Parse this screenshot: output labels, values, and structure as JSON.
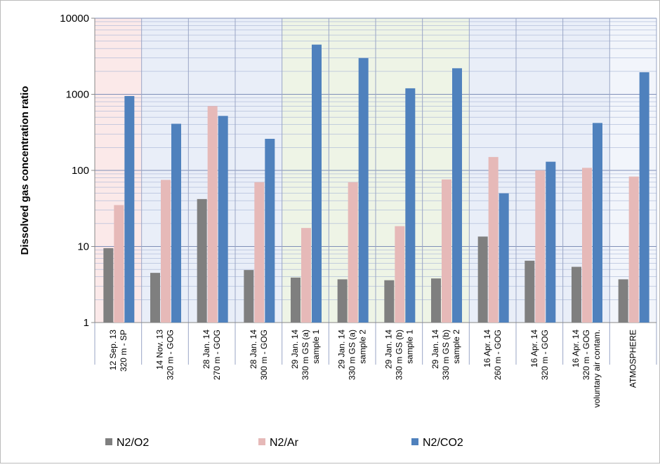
{
  "chart_data": {
    "type": "bar",
    "log_scale": true,
    "grid": true,
    "minor_grid": true,
    "y_label": "Dissolved gas concentration ratio",
    "categories": [
      [
        "12 Sep. 13",
        "320 m - SP"
      ],
      [
        "14 Nov. 13",
        "320 m - GOG"
      ],
      [
        "28 Jan. 14",
        "270 m - GOG"
      ],
      [
        "28 Jan. 14",
        "300 m - GOG"
      ],
      [
        "29 Jan. 14",
        "330 m GS (a)",
        "sample 1"
      ],
      [
        "29 Jan. 14",
        "330 m GS (a)",
        "sample 2"
      ],
      [
        "29 Jan. 14",
        "330 m GS (b)",
        "sample 1"
      ],
      [
        "29 Jan. 14",
        "330 m GS (b)",
        "sample 2"
      ],
      [
        "16 Apr. 14",
        "260 m - GOG"
      ],
      [
        "16 Apr. 14",
        "320 m - GOG"
      ],
      [
        "16 Apr. 14",
        "320 m - GOG",
        "voluntary air contam."
      ],
      [
        "ATMOSPHERE"
      ]
    ],
    "background_colors": [
      "#fbe9e9",
      "#e9eef8",
      "#e9eef8",
      "#e9eef8",
      "#eef4e6",
      "#eef4e6",
      "#eef4e6",
      "#eef4e6",
      "#e9eef8",
      "#e9eef8",
      "#e9eef8",
      "#f2f5fb"
    ],
    "series": [
      {
        "name": "N2/O2",
        "color": "#7f7f7f",
        "values": [
          9.5,
          4.5,
          42,
          4.9,
          3.9,
          3.7,
          3.6,
          3.8,
          13.5,
          6.5,
          5.4,
          3.7
        ]
      },
      {
        "name": "N2/Ar",
        "color": "#e6b9b8",
        "values": [
          35,
          75,
          700,
          70,
          17.5,
          70,
          18.5,
          76,
          150,
          100,
          108,
          83
        ]
      },
      {
        "name": "N2/CO2",
        "color": "#4f81bd",
        "values": [
          950,
          410,
          520,
          260,
          4500,
          3000,
          1200,
          2200,
          50,
          130,
          420,
          1950
        ]
      }
    ],
    "ylim": [
      1,
      10000
    ],
    "yticks": [
      1,
      10,
      100,
      1000,
      10000
    ],
    "legend": "bottom"
  }
}
